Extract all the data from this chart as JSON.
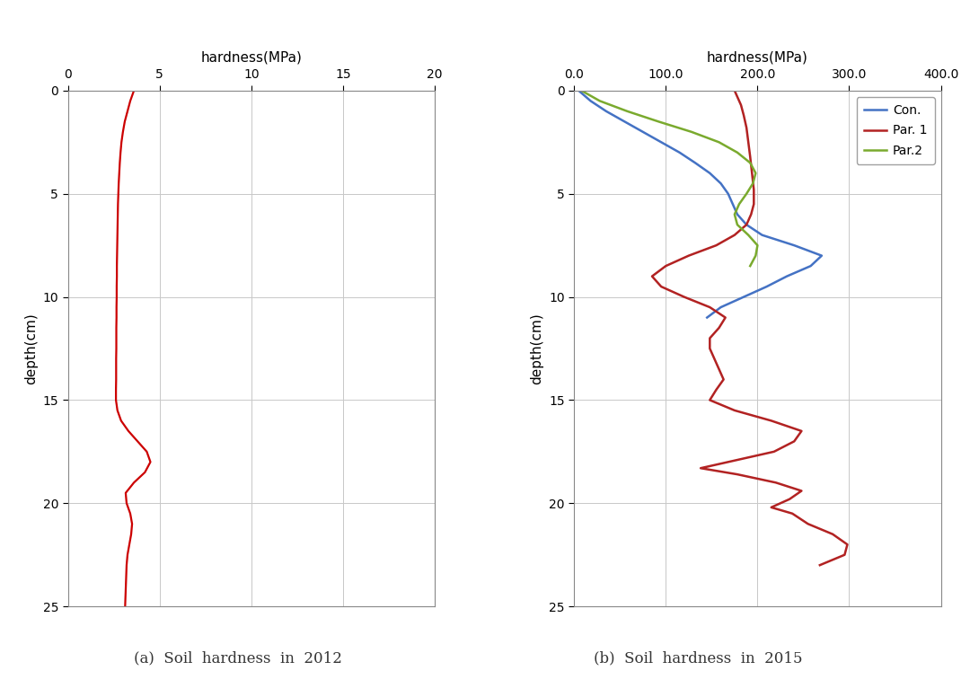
{
  "fig_width": 10.8,
  "fig_height": 7.76,
  "background_color": "#ffffff",
  "plot_a": {
    "title": "hardness(MPa)",
    "ylabel": "depth(cm)",
    "xlim": [
      0,
      20
    ],
    "ylim": [
      25,
      0
    ],
    "xticks": [
      0,
      5,
      10,
      15,
      20
    ],
    "yticks": [
      0,
      5,
      10,
      15,
      20,
      25
    ],
    "caption": "(a)  Soil  hardness  in  2012",
    "line_color": "#cc0000",
    "line_width": 1.6,
    "depth": [
      0.0,
      0.5,
      1.0,
      1.5,
      2.0,
      2.5,
      3.0,
      3.5,
      4.0,
      4.5,
      5.0,
      5.5,
      6.0,
      6.5,
      7.0,
      7.5,
      8.0,
      8.5,
      9.0,
      9.5,
      10.0,
      10.5,
      11.0,
      11.5,
      12.0,
      12.5,
      13.0,
      13.5,
      14.0,
      14.5,
      15.0,
      15.5,
      16.0,
      16.5,
      17.0,
      17.5,
      18.0,
      18.5,
      19.0,
      19.5,
      20.0,
      20.5,
      21.0,
      21.5,
      22.0,
      22.5,
      23.0,
      23.5,
      24.0,
      24.5,
      25.0
    ],
    "hardness": [
      3.6,
      3.4,
      3.25,
      3.1,
      3.0,
      2.92,
      2.87,
      2.83,
      2.8,
      2.77,
      2.75,
      2.73,
      2.72,
      2.71,
      2.7,
      2.69,
      2.68,
      2.67,
      2.67,
      2.66,
      2.66,
      2.65,
      2.65,
      2.64,
      2.64,
      2.64,
      2.63,
      2.63,
      2.63,
      2.62,
      2.62,
      2.7,
      2.9,
      3.3,
      3.8,
      4.3,
      4.5,
      4.2,
      3.6,
      3.15,
      3.2,
      3.4,
      3.5,
      3.45,
      3.35,
      3.25,
      3.2,
      3.18,
      3.16,
      3.14,
      3.12
    ]
  },
  "plot_b": {
    "title": "hardness(MPa)",
    "ylabel": "depth(cm)",
    "xlim": [
      0,
      400
    ],
    "ylim": [
      25,
      0
    ],
    "xticks": [
      0.0,
      100.0,
      200.0,
      300.0,
      400.0
    ],
    "yticks": [
      0,
      5,
      10,
      15,
      20,
      25
    ],
    "caption": "(b)  Soil  hardness  in  2015",
    "con_color": "#4472c4",
    "par1_color": "#b22222",
    "par2_color": "#7aaa2e",
    "line_width": 1.8,
    "con_depth": [
      0.0,
      0.5,
      1.0,
      1.5,
      2.0,
      2.5,
      3.0,
      3.5,
      4.0,
      4.5,
      5.0,
      5.5,
      6.0,
      6.5,
      7.0,
      7.5,
      8.0,
      8.5,
      9.0,
      9.5,
      10.0,
      10.5,
      11.0
    ],
    "con_hard": [
      5,
      18,
      35,
      55,
      75,
      95,
      115,
      132,
      148,
      160,
      168,
      173,
      178,
      188,
      205,
      240,
      270,
      258,
      232,
      210,
      185,
      160,
      145
    ],
    "par1_depth": [
      0.0,
      0.3,
      0.7,
      1.2,
      1.8,
      2.5,
      3.2,
      4.0,
      4.8,
      5.5,
      6.0,
      6.5,
      7.0,
      7.5,
      8.0,
      8.5,
      9.0,
      9.5,
      10.0,
      10.5,
      11.0,
      11.5,
      12.0,
      12.5,
      13.0,
      13.5,
      14.0,
      14.5,
      15.0,
      15.5,
      16.0,
      16.5,
      17.0,
      17.5,
      18.0,
      18.3,
      18.6,
      19.0,
      19.4,
      19.8,
      20.2,
      20.5,
      21.0,
      21.5,
      22.0,
      22.5,
      23.0
    ],
    "par1_hard": [
      175,
      178,
      182,
      185,
      188,
      190,
      192,
      194,
      196,
      196,
      193,
      188,
      175,
      155,
      125,
      100,
      85,
      95,
      120,
      148,
      165,
      158,
      148,
      148,
      153,
      158,
      163,
      155,
      148,
      175,
      215,
      248,
      240,
      218,
      168,
      138,
      178,
      220,
      248,
      235,
      215,
      238,
      255,
      282,
      298,
      295,
      268
    ],
    "par2_depth": [
      0.0,
      0.5,
      1.0,
      1.5,
      2.0,
      2.5,
      3.0,
      3.5,
      4.0,
      4.5,
      5.0,
      5.5,
      6.0,
      6.5,
      7.0,
      7.5,
      8.0,
      8.5
    ],
    "par2_hard": [
      8,
      28,
      58,
      92,
      128,
      158,
      178,
      192,
      198,
      195,
      188,
      180,
      175,
      178,
      190,
      200,
      198,
      192
    ],
    "legend_labels": [
      "Con.",
      "Par. 1",
      "Par.2"
    ]
  }
}
